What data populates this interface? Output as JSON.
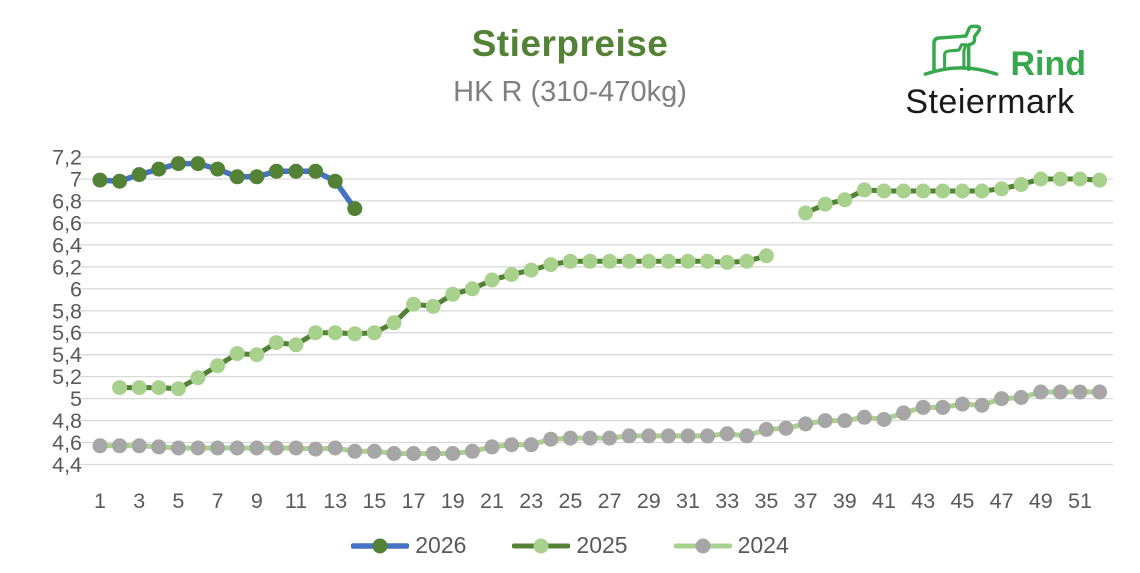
{
  "header": {
    "title": "Stierpreise",
    "subtitle": "HK R (310-470kg)"
  },
  "logo": {
    "icon": "cattle-icon",
    "brand_top": "Rind",
    "brand_bottom": "Steiermark",
    "brand_green": "#38a74e",
    "brand_black": "#191919"
  },
  "chart_data": {
    "type": "line",
    "title": "Stierpreise",
    "subtitle": "HK R (310-470kg)",
    "x_unit": "week",
    "x_range": [
      1,
      52
    ],
    "x_ticks": [
      1,
      3,
      5,
      7,
      9,
      11,
      13,
      15,
      17,
      19,
      21,
      23,
      25,
      27,
      29,
      31,
      33,
      35,
      37,
      39,
      41,
      43,
      45,
      47,
      49,
      51
    ],
    "ylim": [
      4.4,
      7.2
    ],
    "y_tick_step": 0.2,
    "y_tick_labels": [
      "7,2",
      "7",
      "6,8",
      "6,6",
      "6,4",
      "6,2",
      "6",
      "5,8",
      "5,6",
      "5,4",
      "5,2",
      "5",
      "4,8",
      "4,6",
      "4,4"
    ],
    "grid": "horizontal",
    "grid_color": "#d9d9d9",
    "axis_label_color": "#595959",
    "legend_position": "bottom",
    "series": [
      {
        "name": "2024",
        "line_color": "#a9d18e",
        "marker_color": "#a6a6a6",
        "line_width": 5,
        "marker_radius": 7.5,
        "values": [
          4.57,
          4.57,
          4.57,
          4.56,
          4.55,
          4.55,
          4.55,
          4.55,
          4.55,
          4.55,
          4.55,
          4.54,
          4.55,
          4.52,
          4.52,
          4.5,
          4.5,
          4.5,
          4.5,
          4.52,
          4.56,
          4.58,
          4.58,
          4.63,
          4.64,
          4.64,
          4.64,
          4.66,
          4.66,
          4.66,
          4.66,
          4.66,
          4.68,
          4.66,
          4.72,
          4.73,
          4.77,
          4.8,
          4.8,
          4.83,
          4.81,
          4.87,
          4.92,
          4.92,
          4.95,
          4.94,
          5.0,
          5.01,
          5.06,
          5.06,
          5.06,
          5.06
        ]
      },
      {
        "name": "2025",
        "line_color": "#538135",
        "marker_color": "#a9d18e",
        "line_width": 5,
        "marker_radius": 7.5,
        "values": [
          null,
          5.1,
          5.1,
          5.1,
          5.09,
          5.19,
          5.3,
          5.41,
          5.4,
          5.51,
          5.49,
          5.6,
          5.6,
          5.59,
          5.6,
          5.69,
          5.86,
          5.84,
          5.95,
          6.0,
          6.08,
          6.13,
          6.17,
          6.22,
          6.25,
          6.25,
          6.25,
          6.25,
          6.25,
          6.25,
          6.25,
          6.25,
          6.24,
          6.25,
          6.3,
          null,
          6.69,
          6.77,
          6.81,
          6.9,
          6.89,
          6.89,
          6.89,
          6.89,
          6.89,
          6.89,
          6.91,
          6.95,
          7.0,
          7.0,
          7.0,
          6.99
        ]
      },
      {
        "name": "2026",
        "line_color": "#4472c4",
        "marker_color": "#538135",
        "line_width": 5.5,
        "marker_radius": 7.5,
        "values": [
          6.99,
          6.98,
          7.04,
          7.09,
          7.14,
          7.14,
          7.09,
          7.02,
          7.02,
          7.07,
          7.07,
          7.07,
          6.98,
          6.73
        ]
      }
    ],
    "legend_order": [
      "2026",
      "2025",
      "2024"
    ]
  }
}
